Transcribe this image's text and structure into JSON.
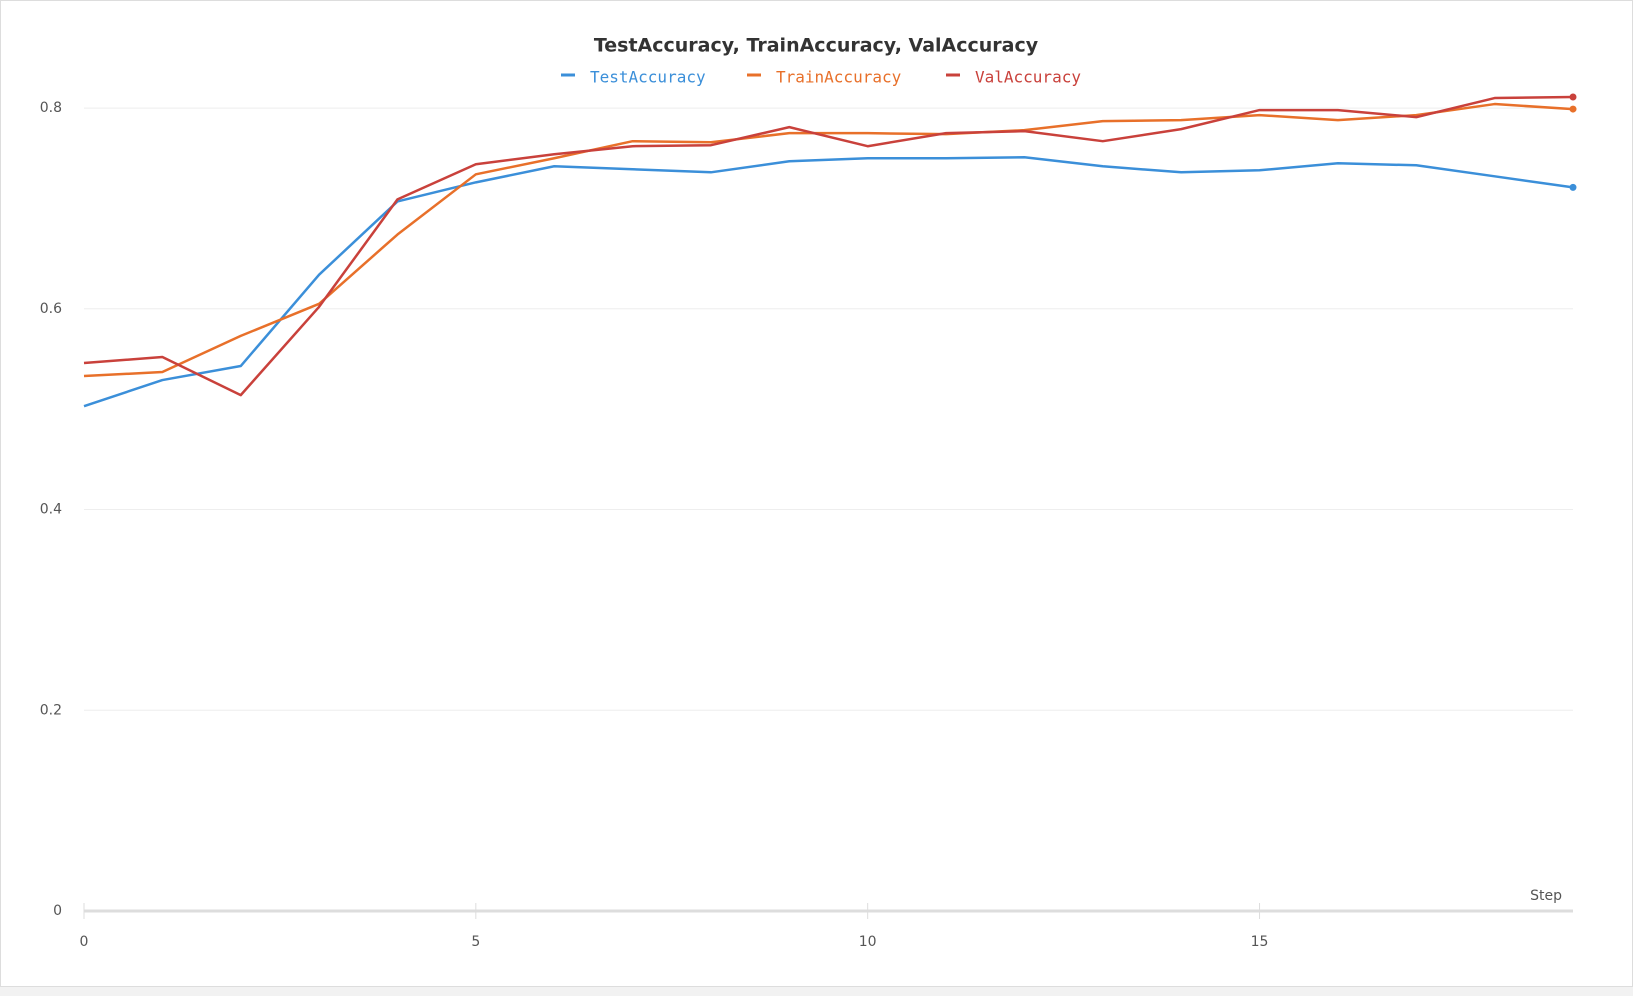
{
  "chart_data": {
    "type": "line",
    "title": "TestAccuracy, TrainAccuracy, ValAccuracy",
    "x_label": "Step",
    "x": [
      0,
      1,
      2,
      3,
      4,
      5,
      6,
      7,
      8,
      9,
      10,
      11,
      12,
      13,
      14,
      15,
      16,
      17,
      18,
      19
    ],
    "series": [
      {
        "name": "TestAccuracy",
        "color": "#3b8fd9",
        "values": [
          0.503,
          0.529,
          0.543,
          0.634,
          0.707,
          0.726,
          0.742,
          0.739,
          0.736,
          0.747,
          0.75,
          0.75,
          0.751,
          0.742,
          0.736,
          0.738,
          0.745,
          0.743,
          0.732,
          0.721
        ]
      },
      {
        "name": "TrainAccuracy",
        "color": "#e8702a",
        "values": [
          0.533,
          0.537,
          0.573,
          0.605,
          0.674,
          0.734,
          0.75,
          0.767,
          0.766,
          0.775,
          0.775,
          0.774,
          0.778,
          0.787,
          0.788,
          0.793,
          0.788,
          0.793,
          0.804,
          0.799
        ]
      },
      {
        "name": "ValAccuracy",
        "color": "#c9413b",
        "values": [
          0.546,
          0.552,
          0.514,
          0.602,
          0.709,
          0.744,
          0.754,
          0.762,
          0.763,
          0.781,
          0.762,
          0.775,
          0.777,
          0.767,
          0.779,
          0.798,
          0.798,
          0.791,
          0.81,
          0.811
        ]
      }
    ],
    "xlim": [
      0,
      19
    ],
    "xticks": [
      0,
      5,
      10,
      15
    ],
    "ylim": [
      0,
      0.82
    ],
    "yticks": [
      0,
      0.2,
      0.4,
      0.6,
      0.8
    ],
    "grid": true
  }
}
